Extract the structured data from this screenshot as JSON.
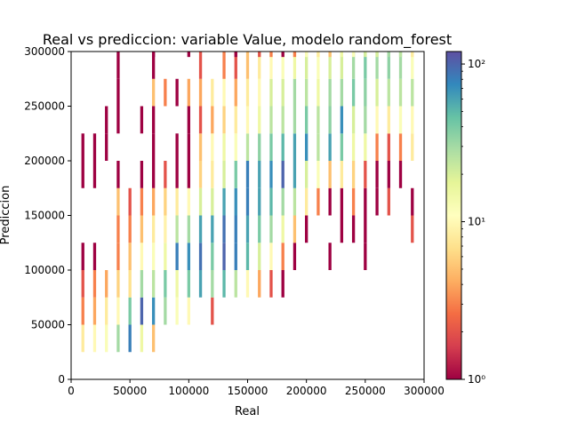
{
  "chart_data": {
    "type": "heatmap",
    "title": "Real vs prediccion: variable Value, modelo random_forest",
    "xlabel": "Real",
    "ylabel": "Prediccion",
    "xlim": [
      0,
      300000
    ],
    "ylim": [
      0,
      300000
    ],
    "x_ticks": [
      0,
      50000,
      100000,
      150000,
      200000,
      250000,
      300000
    ],
    "y_ticks": [
      0,
      50000,
      100000,
      150000,
      200000,
      250000,
      300000
    ],
    "x_tick_labels": [
      "0",
      "50000",
      "100000",
      "150000",
      "200000",
      "250000",
      "300000"
    ],
    "y_tick_labels": [
      "0",
      "50000",
      "100000",
      "150000",
      "200000",
      "250000",
      "300000"
    ],
    "grid": false,
    "colorbar": {
      "scale": "log",
      "min": 1,
      "max": 120,
      "colormap": "Spectral",
      "ticks": [
        1,
        10,
        100
      ],
      "tick_labels": [
        "10⁰",
        "10¹",
        "10²"
      ]
    },
    "bin_width": 2500,
    "bin_height": 25000,
    "columns": [
      {
        "x": 10000,
        "cells": [
          [
            25000,
            8
          ],
          [
            50000,
            3
          ],
          [
            75000,
            2
          ],
          [
            100000,
            1
          ],
          [
            175000,
            1
          ],
          [
            200000,
            1
          ]
        ]
      },
      {
        "x": 20000,
        "cells": [
          [
            25000,
            10
          ],
          [
            50000,
            4
          ],
          [
            75000,
            3
          ],
          [
            100000,
            1
          ],
          [
            175000,
            1
          ],
          [
            200000,
            1
          ]
        ]
      },
      {
        "x": 30000,
        "cells": [
          [
            25000,
            12
          ],
          [
            50000,
            8
          ],
          [
            75000,
            4
          ],
          [
            200000,
            1
          ],
          [
            225000,
            1
          ]
        ]
      },
      {
        "x": 40000,
        "cells": [
          [
            25000,
            30
          ],
          [
            50000,
            10
          ],
          [
            75000,
            6
          ],
          [
            100000,
            3
          ],
          [
            125000,
            3
          ],
          [
            150000,
            5
          ],
          [
            175000,
            1
          ],
          [
            225000,
            1
          ],
          [
            250000,
            1
          ],
          [
            275000,
            1
          ]
        ]
      },
      {
        "x": 50000,
        "cells": [
          [
            25000,
            80
          ],
          [
            50000,
            40
          ],
          [
            75000,
            7
          ],
          [
            100000,
            5
          ],
          [
            125000,
            3
          ],
          [
            150000,
            2
          ]
        ]
      },
      {
        "x": 60000,
        "cells": [
          [
            25000,
            15
          ],
          [
            50000,
            100
          ],
          [
            75000,
            30
          ],
          [
            100000,
            10
          ],
          [
            125000,
            5
          ],
          [
            150000,
            3
          ],
          [
            175000,
            1
          ],
          [
            225000,
            1
          ]
        ]
      },
      {
        "x": 70000,
        "cells": [
          [
            25000,
            5
          ],
          [
            50000,
            70
          ],
          [
            75000,
            25
          ],
          [
            100000,
            12
          ],
          [
            125000,
            8
          ],
          [
            150000,
            4
          ],
          [
            175000,
            1
          ],
          [
            200000,
            1
          ],
          [
            225000,
            1
          ],
          [
            250000,
            5
          ],
          [
            275000,
            1
          ],
          [
            295000,
            1
          ]
        ]
      },
      {
        "x": 80000,
        "cells": [
          [
            50000,
            30
          ],
          [
            75000,
            40
          ],
          [
            100000,
            15
          ],
          [
            125000,
            9
          ],
          [
            150000,
            6
          ],
          [
            175000,
            2
          ],
          [
            250000,
            3
          ]
        ]
      },
      {
        "x": 90000,
        "cells": [
          [
            50000,
            12
          ],
          [
            75000,
            15
          ],
          [
            100000,
            80
          ],
          [
            125000,
            25
          ],
          [
            150000,
            8
          ],
          [
            175000,
            1
          ],
          [
            200000,
            1
          ],
          [
            250000,
            1
          ]
        ]
      },
      {
        "x": 100000,
        "cells": [
          [
            50000,
            10
          ],
          [
            75000,
            40
          ],
          [
            100000,
            70
          ],
          [
            125000,
            30
          ],
          [
            150000,
            10
          ],
          [
            175000,
            1
          ],
          [
            200000,
            1
          ],
          [
            225000,
            1
          ],
          [
            250000,
            4
          ],
          [
            295000,
            1
          ]
        ]
      },
      {
        "x": 110000,
        "cells": [
          [
            75000,
            60
          ],
          [
            100000,
            90
          ],
          [
            125000,
            60
          ],
          [
            150000,
            20
          ],
          [
            175000,
            6
          ],
          [
            200000,
            5
          ],
          [
            225000,
            2
          ],
          [
            250000,
            4
          ],
          [
            275000,
            2
          ]
        ]
      },
      {
        "x": 120000,
        "cells": [
          [
            50000,
            2
          ],
          [
            75000,
            30
          ],
          [
            100000,
            40
          ],
          [
            125000,
            60
          ],
          [
            150000,
            20
          ],
          [
            175000,
            8
          ],
          [
            200000,
            10
          ],
          [
            225000,
            4
          ],
          [
            250000,
            8
          ]
        ]
      },
      {
        "x": 130000,
        "cells": [
          [
            75000,
            50
          ],
          [
            100000,
            100
          ],
          [
            125000,
            90
          ],
          [
            150000,
            60
          ],
          [
            175000,
            20
          ],
          [
            200000,
            15
          ],
          [
            225000,
            6
          ],
          [
            250000,
            10
          ],
          [
            275000,
            3
          ]
        ]
      },
      {
        "x": 140000,
        "cells": [
          [
            75000,
            25
          ],
          [
            100000,
            80
          ],
          [
            125000,
            80
          ],
          [
            150000,
            70
          ],
          [
            175000,
            40
          ],
          [
            200000,
            12
          ],
          [
            225000,
            8
          ],
          [
            250000,
            4
          ],
          [
            275000,
            2
          ],
          [
            295000,
            1
          ]
        ]
      },
      {
        "x": 150000,
        "cells": [
          [
            75000,
            10
          ],
          [
            100000,
            50
          ],
          [
            125000,
            60
          ],
          [
            150000,
            80
          ],
          [
            175000,
            80
          ],
          [
            200000,
            25
          ],
          [
            225000,
            10
          ],
          [
            250000,
            8
          ],
          [
            275000,
            5
          ]
        ]
      },
      {
        "x": 160000,
        "cells": [
          [
            75000,
            4
          ],
          [
            100000,
            20
          ],
          [
            125000,
            40
          ],
          [
            150000,
            60
          ],
          [
            175000,
            60
          ],
          [
            200000,
            35
          ],
          [
            225000,
            15
          ],
          [
            250000,
            10
          ],
          [
            275000,
            8
          ],
          [
            295000,
            2
          ]
        ]
      },
      {
        "x": 170000,
        "cells": [
          [
            75000,
            2
          ],
          [
            100000,
            10
          ],
          [
            125000,
            30
          ],
          [
            150000,
            50
          ],
          [
            175000,
            70
          ],
          [
            200000,
            40
          ],
          [
            225000,
            25
          ],
          [
            250000,
            20
          ],
          [
            275000,
            10
          ],
          [
            295000,
            3
          ]
        ]
      },
      {
        "x": 180000,
        "cells": [
          [
            75000,
            1
          ],
          [
            100000,
            3
          ],
          [
            125000,
            15
          ],
          [
            150000,
            30
          ],
          [
            175000,
            100
          ],
          [
            200000,
            50
          ],
          [
            225000,
            25
          ],
          [
            250000,
            20
          ],
          [
            275000,
            12
          ],
          [
            295000,
            1
          ]
        ]
      },
      {
        "x": 190000,
        "cells": [
          [
            100000,
            1
          ],
          [
            125000,
            5
          ],
          [
            150000,
            25
          ],
          [
            175000,
            60
          ],
          [
            200000,
            60
          ],
          [
            225000,
            30
          ],
          [
            250000,
            30
          ],
          [
            275000,
            15
          ],
          [
            295000,
            3
          ]
        ]
      },
      {
        "x": 200000,
        "cells": [
          [
            125000,
            1
          ],
          [
            150000,
            8
          ],
          [
            175000,
            20
          ],
          [
            200000,
            70
          ],
          [
            225000,
            40
          ],
          [
            250000,
            25
          ],
          [
            275000,
            20
          ],
          [
            295000,
            12
          ]
        ]
      },
      {
        "x": 210000,
        "cells": [
          [
            150000,
            3
          ],
          [
            175000,
            12
          ],
          [
            200000,
            25
          ],
          [
            225000,
            25
          ],
          [
            250000,
            15
          ],
          [
            275000,
            12
          ],
          [
            295000,
            8
          ]
        ]
      },
      {
        "x": 220000,
        "cells": [
          [
            100000,
            1
          ],
          [
            150000,
            1
          ],
          [
            175000,
            5
          ],
          [
            200000,
            60
          ],
          [
            225000,
            35
          ],
          [
            250000,
            30
          ],
          [
            275000,
            20
          ],
          [
            295000,
            5
          ]
        ]
      },
      {
        "x": 230000,
        "cells": [
          [
            125000,
            1
          ],
          [
            150000,
            1
          ],
          [
            175000,
            8
          ],
          [
            200000,
            40
          ],
          [
            225000,
            70
          ],
          [
            250000,
            30
          ],
          [
            275000,
            20
          ],
          [
            295000,
            15
          ]
        ]
      },
      {
        "x": 240000,
        "cells": [
          [
            125000,
            1
          ],
          [
            150000,
            3
          ],
          [
            175000,
            6
          ],
          [
            200000,
            15
          ],
          [
            225000,
            20
          ],
          [
            250000,
            40
          ],
          [
            275000,
            30
          ],
          [
            295000,
            12
          ]
        ]
      },
      {
        "x": 250000,
        "cells": [
          [
            100000,
            1
          ],
          [
            125000,
            1
          ],
          [
            150000,
            1
          ],
          [
            175000,
            2
          ],
          [
            200000,
            15
          ],
          [
            225000,
            30
          ],
          [
            250000,
            35
          ],
          [
            275000,
            40
          ],
          [
            295000,
            20
          ]
        ]
      },
      {
        "x": 260000,
        "cells": [
          [
            150000,
            1
          ],
          [
            175000,
            1
          ],
          [
            200000,
            3
          ],
          [
            225000,
            10
          ],
          [
            250000,
            20
          ],
          [
            275000,
            30
          ],
          [
            295000,
            20
          ]
        ]
      },
      {
        "x": 270000,
        "cells": [
          [
            150000,
            2
          ],
          [
            175000,
            1
          ],
          [
            200000,
            2
          ],
          [
            225000,
            8
          ],
          [
            250000,
            25
          ],
          [
            275000,
            35
          ],
          [
            295000,
            30
          ]
        ]
      },
      {
        "x": 280000,
        "cells": [
          [
            175000,
            1
          ],
          [
            200000,
            3
          ],
          [
            225000,
            12
          ],
          [
            250000,
            25
          ],
          [
            275000,
            30
          ],
          [
            295000,
            25
          ]
        ]
      },
      {
        "x": 290000,
        "cells": [
          [
            125000,
            2
          ],
          [
            150000,
            1
          ],
          [
            200000,
            8
          ],
          [
            225000,
            10
          ],
          [
            250000,
            25
          ],
          [
            275000,
            12
          ],
          [
            295000,
            8
          ]
        ]
      }
    ]
  }
}
